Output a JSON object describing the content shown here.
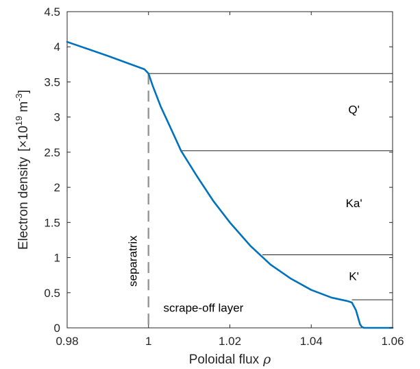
{
  "chart_data": {
    "type": "line",
    "xlabel": "Poloidal flux",
    "xlabel_symbol": "ρ",
    "ylabel": "Electron density",
    "ylabel_unit_open": "[×10",
    "ylabel_unit_exp1": "19",
    "ylabel_unit_mid": " m",
    "ylabel_unit_exp2": "-3",
    "ylabel_unit_close": "]",
    "xlim": [
      0.98,
      1.06
    ],
    "ylim": [
      0,
      4.5
    ],
    "xticks": [
      0.98,
      1.0,
      1.02,
      1.04,
      1.06
    ],
    "xtick_labels": [
      "0.98",
      "1",
      "1.02",
      "1.04",
      "1.06"
    ],
    "yticks": [
      0,
      0.5,
      1,
      1.5,
      2,
      2.5,
      3,
      3.5,
      4,
      4.5
    ],
    "ytick_labels": [
      "0",
      "0.5",
      "1",
      "1.5",
      "2",
      "2.5",
      "3",
      "3.5",
      "4",
      "4.5"
    ],
    "grid": false,
    "series": [
      {
        "color": "#0072bd",
        "x": [
          0.98,
          0.99,
          0.999,
          1.0,
          1.001,
          1.002,
          1.003,
          1.005,
          1.008,
          1.012,
          1.016,
          1.02,
          1.025,
          1.03,
          1.035,
          1.04,
          1.045,
          1.049,
          1.05,
          1.051,
          1.0515,
          1.052,
          1.0525,
          1.053,
          1.055,
          1.06
        ],
        "y": [
          4.07,
          3.87,
          3.68,
          3.62,
          3.45,
          3.3,
          3.15,
          2.9,
          2.52,
          2.15,
          1.8,
          1.5,
          1.17,
          0.9,
          0.7,
          0.54,
          0.43,
          0.38,
          0.36,
          0.25,
          0.15,
          0.05,
          0.01,
          0.0,
          0.0,
          0.0
        ]
      }
    ],
    "separatrix": {
      "x": 1.0,
      "y_top": 3.62,
      "label": "separatrix",
      "color": "#999999"
    },
    "levels": [
      {
        "y": 3.62,
        "x_start": 1.0
      },
      {
        "y": 2.52,
        "x_start": 1.008
      },
      {
        "y": 1.04,
        "x_start": 1.028
      },
      {
        "y": 0.4,
        "x_start": 1.05
      }
    ],
    "band_labels": [
      {
        "text": "Q'",
        "x": 1.0505,
        "y": 3.05
      },
      {
        "text": "Ka'",
        "x": 1.0505,
        "y": 1.72
      },
      {
        "text": "K'",
        "x": 1.0505,
        "y": 0.68
      }
    ],
    "annotations": [
      {
        "text": "scrape-off layer",
        "x": 1.0135,
        "y": 0.23
      }
    ]
  }
}
